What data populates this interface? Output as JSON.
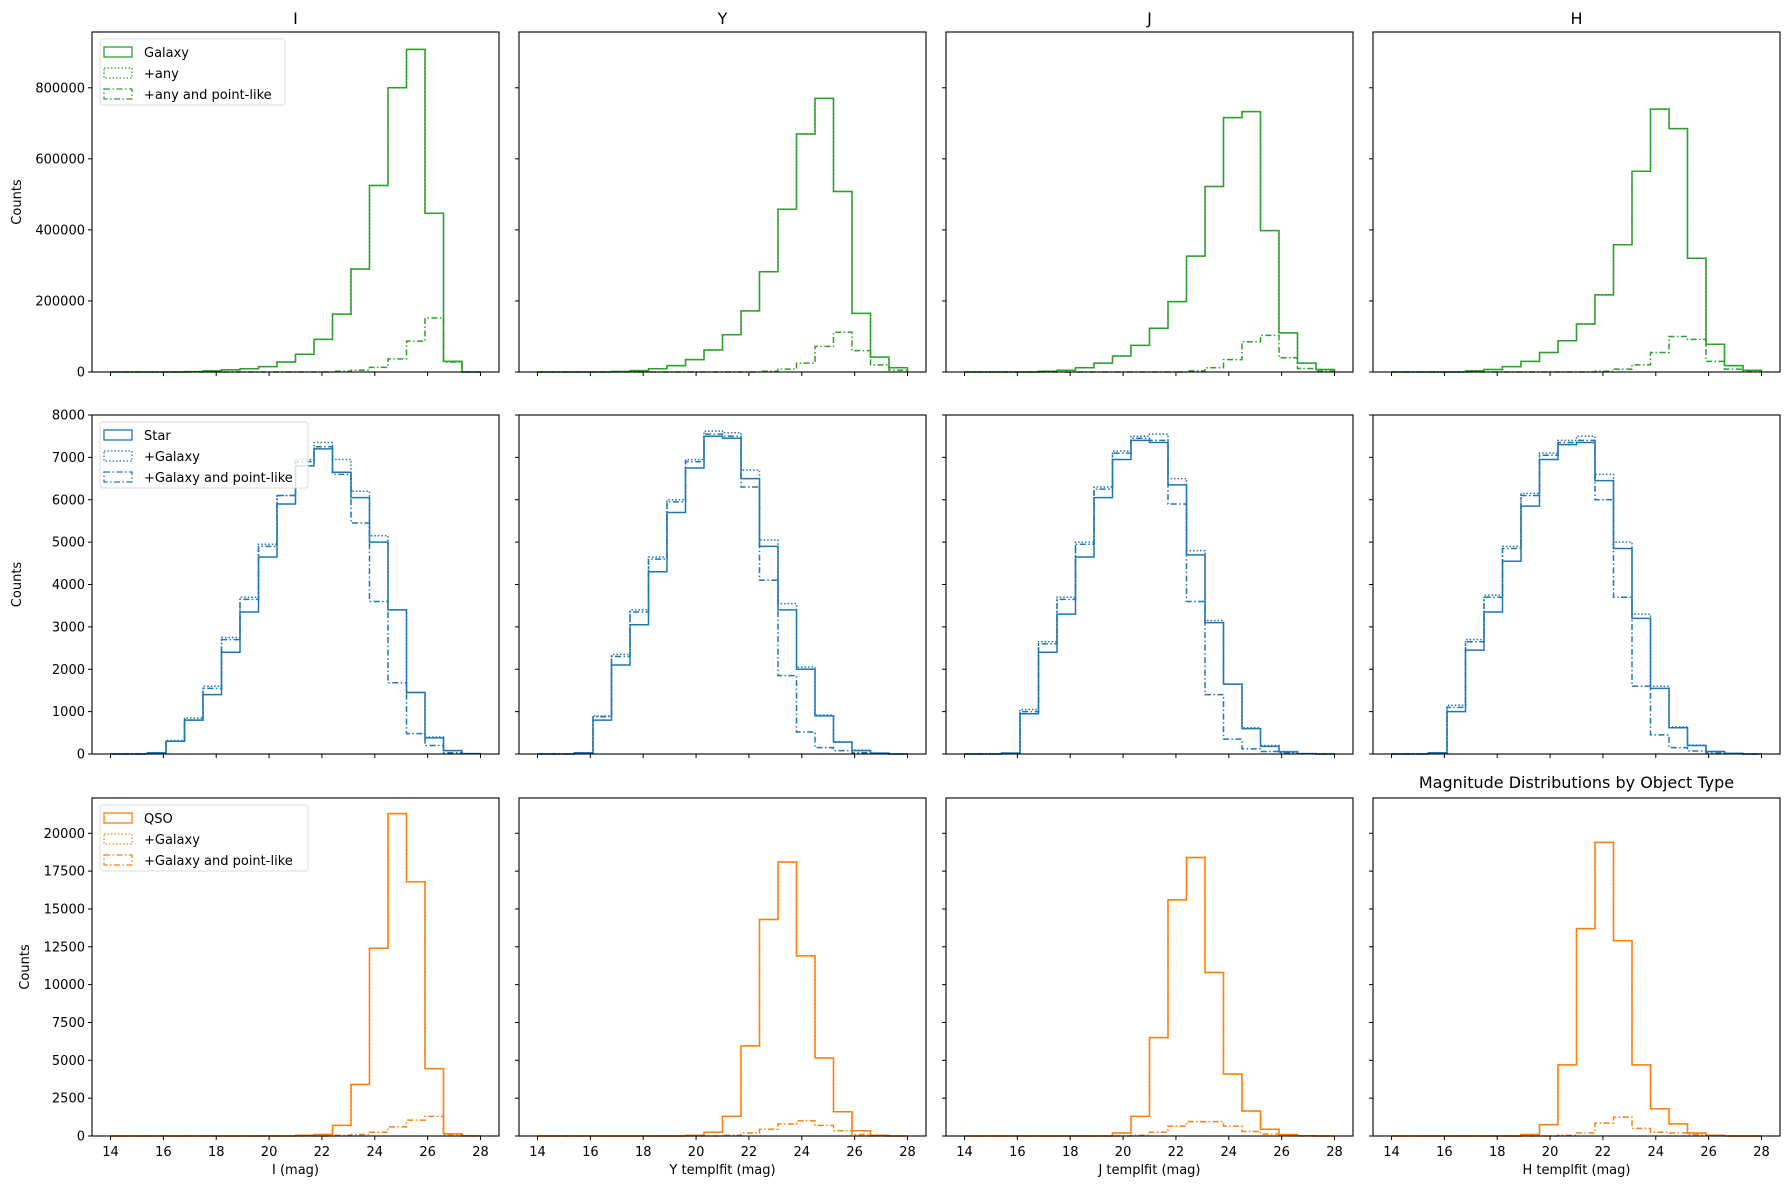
{
  "chart_data": {
    "type": "histogram-grid",
    "suptitle": "Magnitude Distributions by Object Type",
    "bin_edges": [
      14.0,
      14.7,
      15.4,
      16.1,
      16.8,
      17.5,
      18.2,
      18.9,
      19.6,
      20.3,
      21.0,
      21.7,
      22.4,
      23.1,
      23.8,
      24.5,
      25.2,
      25.9,
      26.6,
      27.3,
      28.0
    ],
    "xlim": [
      13.3,
      28.7
    ],
    "xticks": [
      14,
      16,
      18,
      20,
      22,
      24,
      26,
      28
    ],
    "grid": false,
    "legend_placement": "upper left",
    "columns": [
      {
        "title": "I",
        "xlabel": "I (mag)"
      },
      {
        "title": "Y",
        "xlabel": "Y templfit (mag)"
      },
      {
        "title": "J",
        "xlabel": "J templfit (mag)"
      },
      {
        "title": "H",
        "xlabel": "H templfit (mag)"
      }
    ],
    "rows": [
      {
        "ylabel": "Counts",
        "color": "#2ca02c",
        "ylim": [
          0,
          957000
        ],
        "yticks": [
          0,
          200000,
          400000,
          600000,
          800000
        ],
        "series_names": [
          "Galaxy",
          "+any",
          "+any and point-like"
        ],
        "panels": [
          [
            [
              0,
              0,
              0,
              0,
              1000,
              3000,
              6000,
              9000,
              15000,
              28000,
              50000,
              92000,
              163000,
              290000,
              525000,
              800000,
              908000,
              447000,
              30000,
              0
            ],
            [
              0,
              0,
              0,
              0,
              1000,
              3000,
              6000,
              9000,
              15000,
              28000,
              50000,
              92000,
              163000,
              290000,
              525000,
              800000,
              908000,
              447000,
              30000,
              0
            ],
            [
              0,
              0,
              0,
              0,
              0,
              0,
              0,
              0,
              0,
              0,
              0,
              0,
              2000,
              5000,
              13000,
              37000,
              87000,
              152000,
              28000,
              0
            ]
          ],
          [
            [
              0,
              0,
              0,
              0,
              1500,
              4000,
              9000,
              18000,
              35000,
              62000,
              105000,
              172000,
              282000,
              458000,
              670000,
              770000,
              508000,
              165000,
              42000,
              12000
            ],
            [
              0,
              0,
              0,
              0,
              1500,
              4000,
              9000,
              18000,
              35000,
              62000,
              105000,
              172000,
              282000,
              458000,
              670000,
              770000,
              508000,
              165000,
              42000,
              12000
            ],
            [
              0,
              0,
              0,
              0,
              0,
              0,
              0,
              0,
              0,
              0,
              0,
              0,
              2000,
              8000,
              25000,
              72000,
              112000,
              60000,
              20000,
              5000
            ]
          ],
          [
            [
              0,
              0,
              0,
              0,
              2000,
              5000,
              12000,
              25000,
              45000,
              75000,
              123000,
              198000,
              326000,
              522000,
              716000,
              733000,
              398000,
              110000,
              25000,
              7000
            ],
            [
              0,
              0,
              0,
              0,
              2000,
              5000,
              12000,
              25000,
              45000,
              75000,
              123000,
              198000,
              326000,
              522000,
              716000,
              733000,
              398000,
              110000,
              25000,
              7000
            ],
            [
              0,
              0,
              0,
              0,
              0,
              0,
              0,
              0,
              0,
              0,
              0,
              0,
              3000,
              12000,
              35000,
              85000,
              103000,
              40000,
              10000,
              2000
            ]
          ],
          [
            [
              0,
              0,
              0,
              0,
              3000,
              7000,
              15000,
              30000,
              55000,
              88000,
              135000,
              217000,
              358000,
              565000,
              740000,
              685000,
              320000,
              78000,
              18000,
              5000
            ],
            [
              0,
              0,
              0,
              0,
              3000,
              7000,
              15000,
              30000,
              55000,
              88000,
              135000,
              217000,
              358000,
              565000,
              740000,
              685000,
              320000,
              78000,
              18000,
              5000
            ],
            [
              0,
              0,
              0,
              0,
              0,
              0,
              0,
              0,
              0,
              0,
              0,
              2000,
              8000,
              20000,
              55000,
              100000,
              92000,
              30000,
              8000,
              2000
            ]
          ]
        ]
      },
      {
        "ylabel": "Counts",
        "color": "#1f77b4",
        "ylim": [
          0,
          8000
        ],
        "yticks": [
          0,
          1000,
          2000,
          3000,
          4000,
          5000,
          6000,
          7000,
          8000
        ],
        "series_names": [
          "Star",
          "+Galaxy",
          "+Galaxy and point-like"
        ],
        "panels": [
          [
            [
              0,
              0,
              30,
              300,
              800,
              1400,
              2400,
              3350,
              4650,
              5900,
              6800,
              7200,
              6650,
              6050,
              5000,
              3400,
              1450,
              380,
              80,
              10
            ],
            [
              0,
              0,
              30,
              320,
              850,
              1600,
              2750,
              3700,
              4950,
              6100,
              6950,
              7350,
              6950,
              6200,
              5150,
              3400,
              1450,
              400,
              80,
              10
            ],
            [
              0,
              0,
              30,
              300,
              800,
              1550,
              2700,
              3650,
              4900,
              6100,
              6900,
              7250,
              6600,
              5450,
              3600,
              1680,
              480,
              200,
              30,
              5
            ]
          ],
          [
            [
              0,
              0,
              30,
              800,
              2100,
              3050,
              4300,
              5700,
              6750,
              7500,
              7450,
              6500,
              4900,
              3400,
              2000,
              900,
              280,
              80,
              20,
              0
            ],
            [
              0,
              0,
              30,
              900,
              2350,
              3400,
              4650,
              6000,
              6950,
              7620,
              7580,
              6700,
              5050,
              3550,
              2050,
              920,
              290,
              90,
              20,
              0
            ],
            [
              0,
              0,
              30,
              880,
              2300,
              3350,
              4600,
              5950,
              6900,
              7550,
              7500,
              6300,
              4100,
              1850,
              520,
              150,
              80,
              30,
              10,
              0
            ]
          ],
          [
            [
              0,
              0,
              20,
              950,
              2400,
              3300,
              4650,
              6050,
              6950,
              7400,
              7350,
              6350,
              4700,
              3100,
              1650,
              600,
              180,
              50,
              10,
              0
            ],
            [
              0,
              0,
              20,
              1050,
              2650,
              3700,
              5000,
              6300,
              7150,
              7500,
              7550,
              6500,
              4800,
              3150,
              1650,
              620,
              200,
              60,
              10,
              0
            ],
            [
              0,
              0,
              20,
              1000,
              2600,
              3650,
              4950,
              6250,
              7100,
              7450,
              7400,
              5900,
              3600,
              1400,
              350,
              120,
              60,
              20,
              5,
              0
            ]
          ],
          [
            [
              0,
              0,
              30,
              1000,
              2450,
              3350,
              4550,
              5850,
              6950,
              7300,
              7350,
              6450,
              4850,
              3200,
              1550,
              620,
              200,
              60,
              15,
              0
            ],
            [
              0,
              0,
              30,
              1150,
              2700,
              3750,
              4900,
              6150,
              7100,
              7400,
              7500,
              6600,
              5000,
              3300,
              1600,
              640,
              210,
              60,
              15,
              0
            ],
            [
              0,
              0,
              30,
              1100,
              2650,
              3700,
              4850,
              6100,
              7050,
              7350,
              7400,
              6000,
              3700,
              1600,
              450,
              150,
              70,
              20,
              5,
              0
            ]
          ]
        ]
      },
      {
        "ylabel": "Counts",
        "color": "#ff7f0e",
        "ylim": [
          0,
          22330
        ],
        "yticks": [
          0,
          2500,
          5000,
          7500,
          10000,
          12500,
          15000,
          17500,
          20000
        ],
        "series_names": [
          "QSO",
          "+Galaxy",
          "+Galaxy and point-like"
        ],
        "panels": [
          [
            [
              0,
              0,
              0,
              0,
              0,
              0,
              0,
              0,
              0,
              0,
              50,
              100,
              700,
              3400,
              12400,
              21300,
              16800,
              4450,
              150,
              10
            ],
            [
              0,
              0,
              0,
              0,
              0,
              0,
              0,
              0,
              0,
              0,
              50,
              100,
              700,
              3400,
              12400,
              21300,
              16800,
              4450,
              150,
              10
            ],
            [
              0,
              0,
              0,
              0,
              0,
              0,
              0,
              0,
              0,
              0,
              0,
              0,
              50,
              100,
              250,
              600,
              1050,
              1300,
              100,
              0
            ]
          ],
          [
            [
              0,
              0,
              0,
              0,
              0,
              0,
              0,
              0,
              50,
              250,
              1300,
              5950,
              14300,
              18100,
              11900,
              5150,
              1600,
              350,
              50,
              0
            ],
            [
              0,
              0,
              0,
              0,
              0,
              0,
              0,
              0,
              50,
              250,
              1300,
              5950,
              14300,
              18100,
              11900,
              5150,
              1600,
              350,
              50,
              0
            ],
            [
              0,
              0,
              0,
              0,
              0,
              0,
              0,
              0,
              0,
              0,
              50,
              200,
              450,
              800,
              1000,
              700,
              350,
              100,
              0,
              0
            ]
          ],
          [
            [
              0,
              0,
              0,
              0,
              0,
              0,
              0,
              0,
              200,
              1300,
              6500,
              15600,
              18400,
              10800,
              4100,
              1650,
              450,
              100,
              20,
              0
            ],
            [
              0,
              0,
              0,
              0,
              0,
              0,
              0,
              0,
              200,
              1300,
              6500,
              15600,
              18400,
              10800,
              4100,
              1650,
              450,
              100,
              20,
              0
            ],
            [
              0,
              0,
              0,
              0,
              0,
              0,
              0,
              0,
              0,
              50,
              250,
              650,
              950,
              950,
              650,
              300,
              120,
              30,
              0,
              0
            ]
          ],
          [
            [
              0,
              0,
              0,
              0,
              0,
              0,
              0,
              100,
              750,
              4700,
              13700,
              19400,
              12900,
              4700,
              1800,
              800,
              200,
              50,
              0,
              0
            ],
            [
              0,
              0,
              0,
              0,
              0,
              0,
              0,
              100,
              750,
              4700,
              13700,
              19400,
              12900,
              4700,
              1800,
              800,
              200,
              50,
              0,
              0
            ],
            [
              0,
              0,
              0,
              0,
              0,
              0,
              0,
              0,
              0,
              50,
              200,
              850,
              1250,
              500,
              250,
              200,
              100,
              20,
              0,
              0
            ]
          ]
        ]
      }
    ]
  }
}
